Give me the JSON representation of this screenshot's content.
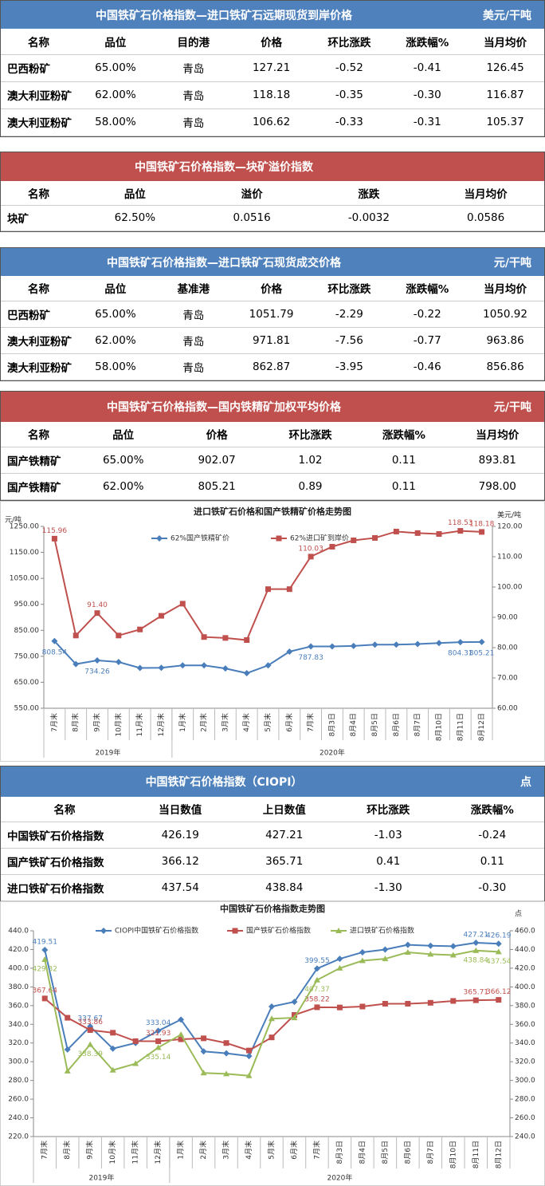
{
  "tables": [
    {
      "title": "中国铁矿石价格指数—进口铁矿石远期现货到岸价格",
      "unit": "美元/干吨",
      "header": [
        "名称",
        "品位",
        "目的港",
        "价格",
        "环比涨跌",
        "涨跌幅%",
        "当月均价"
      ],
      "rows": [
        [
          "巴西粉矿",
          "65.00%",
          "青岛",
          "127.21",
          "-0.52",
          "-0.41",
          "126.45"
        ],
        [
          "澳大利亚粉矿",
          "62.00%",
          "青岛",
          "118.18",
          "-0.35",
          "-0.30",
          "116.87"
        ],
        [
          "澳大利亚粉矿",
          "58.00%",
          "青岛",
          "106.62",
          "-0.33",
          "-0.31",
          "105.37"
        ]
      ]
    },
    {
      "title": "中国铁矿石价格指数—块矿溢价指数",
      "header": [
        "名称",
        "品位",
        "溢价",
        "涨跌",
        "当月均价"
      ],
      "rows": [
        [
          "块矿",
          "62.50%",
          "0.0516",
          "-0.0032",
          "0.0586"
        ]
      ]
    },
    {
      "title": "中国铁矿石价格指数—进口铁矿石现货成交价格",
      "unit": "元/干吨",
      "header": [
        "名称",
        "品位",
        "基准港",
        "价格",
        "环比涨跌",
        "涨跌幅%",
        "当月均价"
      ],
      "rows": [
        [
          "巴西粉矿",
          "65.00%",
          "青岛",
          "1051.79",
          "-2.29",
          "-0.22",
          "1050.92"
        ],
        [
          "澳大利亚粉矿",
          "62.00%",
          "青岛",
          "971.81",
          "-7.56",
          "-0.77",
          "963.86"
        ],
        [
          "澳大利亚粉矿",
          "58.00%",
          "青岛",
          "862.87",
          "-3.95",
          "-0.46",
          "856.86"
        ]
      ]
    },
    {
      "title": "中国铁矿石价格指数—国内铁精矿加权平均价格",
      "unit": "元/干吨",
      "header": [
        "名称",
        "品位",
        "价格",
        "环比涨跌",
        "涨跌幅%",
        "当月均价"
      ],
      "rows": [
        [
          "国产铁精矿",
          "65.00%",
          "902.07",
          "1.02",
          "0.11",
          "893.81"
        ],
        [
          "国产铁精矿",
          "62.00%",
          "805.21",
          "0.89",
          "0.11",
          "798.00"
        ]
      ]
    },
    {
      "title": "中国铁矿石价格指数（CIOPI）",
      "unit": "点",
      "header": [
        "名称",
        "当日数值",
        "上日数值",
        "环比涨跌",
        "涨跌幅%"
      ],
      "rows": [
        [
          "中国铁矿石价格指数",
          "426.19",
          "427.21",
          "-1.03",
          "-0.24"
        ],
        [
          "国产铁矿石价格指数",
          "366.12",
          "365.71",
          "0.41",
          "0.11"
        ],
        [
          "进口铁矿石价格指数",
          "437.54",
          "438.84",
          "-1.30",
          "-0.30"
        ]
      ]
    }
  ],
  "chart_data": [
    {
      "type": "line",
      "title": "进口铁矿石价格和国产铁精矿价格走势图",
      "y_label": "元/吨",
      "y2_label": "美元/吨",
      "categories": [
        "7月末",
        "8月末",
        "9月末",
        "10月末",
        "11月末",
        "12月末",
        "1月末",
        "2月末",
        "3月末",
        "4月末",
        "5月末",
        "6月末",
        "7月末",
        "8月3日",
        "8月4日",
        "8月5日",
        "8月6日",
        "8月7日",
        "8月10日",
        "8月11日",
        "8月12日"
      ],
      "groups": [
        {
          "name": "2019年",
          "count": 6
        },
        {
          "name": "2020年",
          "count": 15
        }
      ],
      "ylim": [
        550,
        1250
      ],
      "yticks": [
        {
          "value": 550,
          "label": "550.00"
        },
        {
          "value": 650,
          "label": "650.00"
        },
        {
          "value": 750,
          "label": "750.00"
        },
        {
          "value": 850,
          "label": "850.00"
        },
        {
          "value": 950,
          "label": "950.00"
        },
        {
          "value": 1050,
          "label": "1050.00"
        },
        {
          "value": 1150,
          "label": "1150.00"
        },
        {
          "value": 1250,
          "label": "1250.00"
        }
      ],
      "y2lim": [
        60,
        120
      ],
      "y2ticks": [
        {
          "value": 60,
          "label": "60.00"
        },
        {
          "value": 70,
          "label": "70.00"
        },
        {
          "value": 80,
          "label": "80.00"
        },
        {
          "value": 90,
          "label": "90.00"
        },
        {
          "value": 100,
          "label": "100.00"
        },
        {
          "value": 110,
          "label": "110.00"
        },
        {
          "value": 120,
          "label": "120.00"
        }
      ],
      "series": [
        {
          "name": "62%国产铁精矿价",
          "color": "#4a7ebb",
          "values": [
            808.54,
            720,
            734.26,
            728,
            705,
            706,
            715,
            715,
            703,
            685,
            715,
            768,
            787.83,
            788,
            790,
            795,
            795,
            797,
            801,
            804.31,
            805.21
          ],
          "value_labels": [
            "808.54",
            null,
            "734.26",
            null,
            null,
            null,
            null,
            null,
            null,
            null,
            null,
            null,
            "787.83",
            null,
            null,
            null,
            null,
            null,
            null,
            "804.31",
            "805.21"
          ]
        },
        {
          "name": "62%进口矿到岸价",
          "color": "#c0504d",
          "axis": "y2",
          "values": [
            115.96,
            84,
            91.4,
            84,
            86,
            90.5,
            94.5,
            83.5,
            83.2,
            82.5,
            99.3,
            99.3,
            110.03,
            113.3,
            115.4,
            116.2,
            118.3,
            117.8,
            117.5,
            118.53,
            118.18
          ],
          "value_labels": [
            "115.96",
            null,
            "91.40",
            null,
            null,
            null,
            null,
            null,
            null,
            null,
            null,
            null,
            "110.03",
            null,
            null,
            null,
            null,
            null,
            null,
            "118.53",
            "118.18"
          ]
        }
      ]
    },
    {
      "type": "line",
      "title": "中国铁矿石价格指数走势图",
      "y2_label": "点",
      "categories": [
        "7月末",
        "8月末",
        "9月末",
        "10月末",
        "11月末",
        "12月末",
        "1月末",
        "2月末",
        "3月末",
        "4月末",
        "5月末",
        "6月末",
        "7月末",
        "8月3日",
        "8月4日",
        "8月5日",
        "8月6日",
        "8月7日",
        "8月10日",
        "8月11日",
        "8月12日"
      ],
      "groups": [
        {
          "name": "2019年",
          "count": 6
        },
        {
          "name": "2020年",
          "count": 15
        }
      ],
      "ylim": [
        220,
        440
      ],
      "yticks": [
        {
          "value": 220,
          "label": "220.0"
        },
        {
          "value": 240,
          "label": "240.0"
        },
        {
          "value": 260,
          "label": "260.0"
        },
        {
          "value": 280,
          "label": "280.0"
        },
        {
          "value": 300,
          "label": "300.0"
        },
        {
          "value": 320,
          "label": "320.0"
        },
        {
          "value": 340,
          "label": "340.0"
        },
        {
          "value": 360,
          "label": "360.0"
        },
        {
          "value": 380,
          "label": "380.0"
        },
        {
          "value": 400,
          "label": "400.0"
        },
        {
          "value": 420,
          "label": "420.0"
        },
        {
          "value": 440,
          "label": "440.0"
        }
      ],
      "y2lim": [
        240,
        460
      ],
      "y2ticks": [
        {
          "value": 240,
          "label": "240.0"
        },
        {
          "value": 260,
          "label": "260.0"
        },
        {
          "value": 280,
          "label": "280.0"
        },
        {
          "value": 300,
          "label": "300.0"
        },
        {
          "value": 320,
          "label": "320.0"
        },
        {
          "value": 340,
          "label": "340.0"
        },
        {
          "value": 360,
          "label": "360.0"
        },
        {
          "value": 380,
          "label": "380.0"
        },
        {
          "value": 400,
          "label": "400.0"
        },
        {
          "value": 420,
          "label": "420.0"
        },
        {
          "value": 440,
          "label": "440.0"
        },
        {
          "value": 460,
          "label": "460.0"
        }
      ],
      "series": [
        {
          "name": "CIOPI中国铁矿石价格指数",
          "color": "#4a7ebb",
          "values": [
            419.51,
            313,
            337.67,
            314,
            320,
            333.04,
            345,
            311,
            309,
            306,
            359,
            364,
            399.55,
            410,
            417,
            420,
            425,
            424,
            423.5,
            427.21,
            426.19
          ],
          "value_labels": [
            "419.51",
            null,
            "337.67",
            null,
            null,
            "333.04",
            null,
            null,
            null,
            null,
            null,
            null,
            "399.55",
            null,
            null,
            null,
            null,
            null,
            null,
            "427.21",
            "426.19"
          ]
        },
        {
          "name": "国产铁矿石价格指数",
          "color": "#c0504d",
          "values": [
            367.64,
            347,
            333.86,
            331,
            322,
            321.93,
            324,
            325,
            320,
            312,
            326,
            350,
            358.22,
            358,
            359,
            362,
            362,
            363,
            365,
            365.71,
            366.12
          ],
          "value_labels": [
            "367.64",
            null,
            "333.86",
            null,
            null,
            "321.93",
            null,
            null,
            null,
            null,
            null,
            null,
            "358.22",
            null,
            null,
            null,
            null,
            null,
            null,
            "365.71",
            "366.12"
          ]
        },
        {
          "name": "进口铁矿石价格指数",
          "color": "#9bbb59",
          "axis": "y2",
          "values": [
            429.32,
            310,
            338.39,
            311,
            318,
            335.14,
            349,
            308,
            307,
            305,
            366,
            367,
            407.37,
            420,
            428,
            430,
            437,
            435,
            434,
            438.84,
            437.54
          ],
          "value_labels": [
            "429.32",
            null,
            "338.39",
            null,
            null,
            "335.14",
            null,
            null,
            null,
            null,
            null,
            null,
            "407.37",
            null,
            null,
            null,
            null,
            null,
            null,
            "438.84",
            "437.54"
          ]
        }
      ]
    }
  ]
}
